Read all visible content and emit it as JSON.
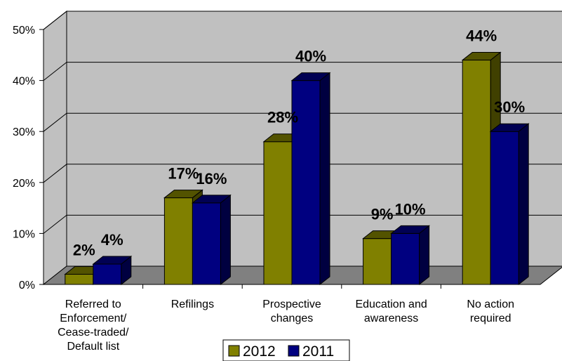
{
  "chart_data": {
    "type": "bar",
    "categories": [
      "Referred to Enforcement/ Cease-traded/ Default list",
      "Refilings",
      "Prospective changes",
      "Education and awareness",
      "No action required"
    ],
    "category_lines": [
      [
        "Referred to",
        "Enforcement/",
        "Cease-traded/",
        "Default list"
      ],
      [
        "Refilings"
      ],
      [
        "Prospective",
        "changes"
      ],
      [
        "Education and",
        "awareness"
      ],
      [
        "No action",
        "required"
      ]
    ],
    "series": [
      {
        "name": "2012",
        "values": [
          2,
          17,
          28,
          9,
          44
        ],
        "labels": [
          "2%",
          "17%",
          "28%",
          "9%",
          "44%"
        ],
        "color": "#808000"
      },
      {
        "name": "2011",
        "values": [
          4,
          16,
          40,
          10,
          30
        ],
        "labels": [
          "4%",
          "16%",
          "40%",
          "10%",
          "30%"
        ],
        "color": "#000080"
      }
    ],
    "y_ticks": [
      "0%",
      "10%",
      "20%",
      "30%",
      "40%",
      "50%"
    ],
    "ylim": [
      0,
      50
    ],
    "title": "",
    "xlabel": "",
    "ylabel": "",
    "grid": true,
    "legend_position": "bottom-center",
    "wall_color": "#c0c0c0",
    "floor_color": "#808080"
  }
}
